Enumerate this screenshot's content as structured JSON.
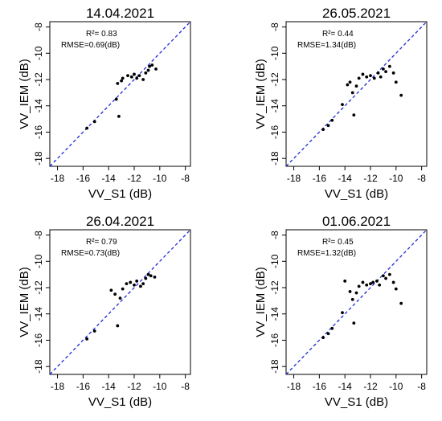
{
  "chart_data": [
    {
      "type": "scatter",
      "title": "14.04.2021",
      "xlabel": "VV_S1 (dB)",
      "ylabel": "VV_IEM (dB)",
      "xlim": [
        -18.6,
        -7.6
      ],
      "ylim": [
        -18.6,
        -7.6
      ],
      "xticks": [
        "-18",
        "-16",
        "-14",
        "-12",
        "-10",
        "-8"
      ],
      "yticks": [
        "-18",
        "-16",
        "-14",
        "-12",
        "-10",
        "-8"
      ],
      "grid": false,
      "reference_line": "1:1 (blue dashed)",
      "stats": [
        "R²= 0.83",
        "RMSE=0.69(dB)"
      ],
      "x": [
        -15.7,
        -15.1,
        -13.4,
        -13.3,
        -13.2,
        -13.0,
        -12.9,
        -12.5,
        -12.2,
        -12.0,
        -11.8,
        -11.6,
        -11.3,
        -11.1,
        -10.9,
        -10.8,
        -10.6,
        -10.3
      ],
      "y": [
        -15.7,
        -15.2,
        -13.5,
        -12.3,
        -14.8,
        -12.1,
        -11.9,
        -11.7,
        -11.8,
        -11.6,
        -11.9,
        -11.7,
        -12.0,
        -11.5,
        -11.3,
        -11.0,
        -10.9,
        -11.2
      ]
    },
    {
      "type": "scatter",
      "title": "26.05.2021",
      "xlabel": "VV_S1 (dB)",
      "ylabel": "VV_IEM (dB)",
      "xlim": [
        -18.6,
        -7.6
      ],
      "ylim": [
        -18.6,
        -7.6
      ],
      "xticks": [
        "-18",
        "-16",
        "-14",
        "-12",
        "-10",
        "-8"
      ],
      "yticks": [
        "-18",
        "-16",
        "-14",
        "-12",
        "-10",
        "-8"
      ],
      "grid": false,
      "reference_line": "1:1 (blue dashed)",
      "stats": [
        "R²= 0.44",
        "RMSE=1.34(dB)"
      ],
      "x": [
        -15.7,
        -15.3,
        -15.0,
        -14.2,
        -13.8,
        -13.6,
        -13.4,
        -13.3,
        -13.1,
        -12.9,
        -12.6,
        -12.3,
        -12.0,
        -11.7,
        -11.4,
        -11.2,
        -11.0,
        -10.8,
        -10.5,
        -10.2,
        -10.0,
        -9.6
      ],
      "y": [
        -15.8,
        -15.5,
        -15.1,
        -13.9,
        -12.4,
        -12.2,
        -13.0,
        -14.7,
        -12.5,
        -11.9,
        -11.6,
        -11.8,
        -11.7,
        -11.9,
        -11.5,
        -11.8,
        -11.2,
        -11.4,
        -11.0,
        -11.5,
        -12.2,
        -13.2
      ]
    },
    {
      "type": "scatter",
      "title": "26.04.2021",
      "xlabel": "VV_S1 (dB)",
      "ylabel": "VV_IEM (dB)",
      "xlim": [
        -18.6,
        -7.6
      ],
      "ylim": [
        -18.6,
        -7.6
      ],
      "xticks": [
        "-18",
        "-16",
        "-14",
        "-12",
        "-10",
        "-8"
      ],
      "yticks": [
        "-18",
        "-16",
        "-14",
        "-12",
        "-10",
        "-8"
      ],
      "grid": false,
      "reference_line": "1:1 (blue dashed)",
      "stats": [
        "R²= 0.79",
        "RMSE=0.73(dB)"
      ],
      "x": [
        -15.7,
        -15.1,
        -13.8,
        -13.5,
        -13.3,
        -13.1,
        -12.9,
        -12.6,
        -12.3,
        -12.0,
        -11.8,
        -11.5,
        -11.3,
        -11.1,
        -10.9,
        -10.7,
        -10.4
      ],
      "y": [
        -15.9,
        -15.3,
        -12.2,
        -12.5,
        -14.9,
        -12.8,
        -12.1,
        -11.7,
        -11.6,
        -11.8,
        -11.5,
        -11.9,
        -11.7,
        -11.3,
        -11.0,
        -11.1,
        -11.2
      ]
    },
    {
      "type": "scatter",
      "title": "01.06.2021",
      "xlabel": "VV_S1 (dB)",
      "ylabel": "VV_IEM (dB)",
      "xlim": [
        -18.6,
        -7.6
      ],
      "ylim": [
        -18.6,
        -7.6
      ],
      "xticks": [
        "-18",
        "-16",
        "-14",
        "-12",
        "-10",
        "-8"
      ],
      "yticks": [
        "-18",
        "-16",
        "-14",
        "-12",
        "-10",
        "-8"
      ],
      "grid": false,
      "reference_line": "1:1 (blue dashed)",
      "stats": [
        "R²= 0.45",
        "RMSE=1.32(dB)"
      ],
      "x": [
        -15.7,
        -15.3,
        -15.0,
        -14.2,
        -14.0,
        -13.6,
        -13.4,
        -13.3,
        -13.1,
        -12.9,
        -12.6,
        -12.3,
        -12.0,
        -11.8,
        -11.5,
        -11.3,
        -11.0,
        -10.8,
        -10.5,
        -10.2,
        -10.0,
        -9.6
      ],
      "y": [
        -15.8,
        -15.5,
        -15.1,
        -13.9,
        -11.5,
        -12.3,
        -12.9,
        -14.7,
        -12.4,
        -11.9,
        -11.6,
        -11.8,
        -11.7,
        -11.6,
        -11.5,
        -11.8,
        -11.1,
        -11.3,
        -11.0,
        -11.6,
        -12.1,
        -13.2
      ]
    }
  ]
}
